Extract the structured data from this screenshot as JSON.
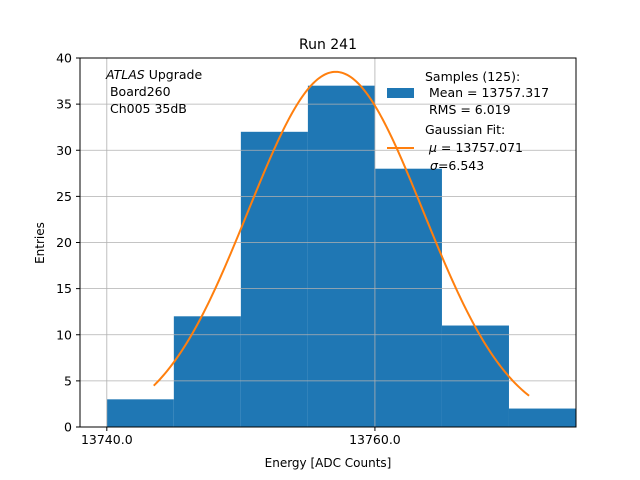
{
  "chart_data": {
    "type": "bar",
    "title": "Run 241",
    "xlabel": "Energy [ADC Counts]",
    "ylabel": "Entries",
    "xlim": [
      13738.0,
      13775.0
    ],
    "ylim": [
      0,
      40
    ],
    "grid": true,
    "x_ticks": [
      {
        "value": 13740.0,
        "label": "13740.0"
      },
      {
        "value": 13760.0,
        "label": "13760.0"
      }
    ],
    "y_ticks": [
      0,
      5,
      10,
      15,
      20,
      25,
      30,
      35,
      40
    ],
    "histogram": {
      "name": "Samples",
      "color": "#1f77b4",
      "bins": [
        {
          "x0": 13740,
          "x1": 13745,
          "count": 3
        },
        {
          "x0": 13745,
          "x1": 13750,
          "count": 12
        },
        {
          "x0": 13750,
          "x1": 13755,
          "count": 32
        },
        {
          "x0": 13755,
          "x1": 13760,
          "count": 37
        },
        {
          "x0": 13760,
          "x1": 13765,
          "count": 28
        },
        {
          "x0": 13765,
          "x1": 13770,
          "count": 11
        },
        {
          "x0": 13770,
          "x1": 13775,
          "count": 2
        }
      ]
    },
    "fit": {
      "name": "Gaussian Fit",
      "color": "#ff7f0e",
      "mu": 13757.071,
      "sigma": 6.543,
      "amplitude": 38.5,
      "x_range": [
        13743.5,
        13771.5
      ]
    },
    "annotation": {
      "italic": "ATLAS",
      "rest": " Upgrade",
      "line2": " Board260",
      "line3": " Ch005 35dB"
    },
    "legend": {
      "position": "top-right",
      "samples_line1": "Samples (125):",
      "samples_line2": " Mean = 13757.317",
      "samples_line3": " RMS = 6.019",
      "fit_line1": "Gaussian Fit:",
      "fit_mu_symbol": "μ",
      "fit_mu_rest": " = 13757.071",
      "fit_sigma_symbol": "σ",
      "fit_sigma_rest": "=6.543"
    }
  }
}
